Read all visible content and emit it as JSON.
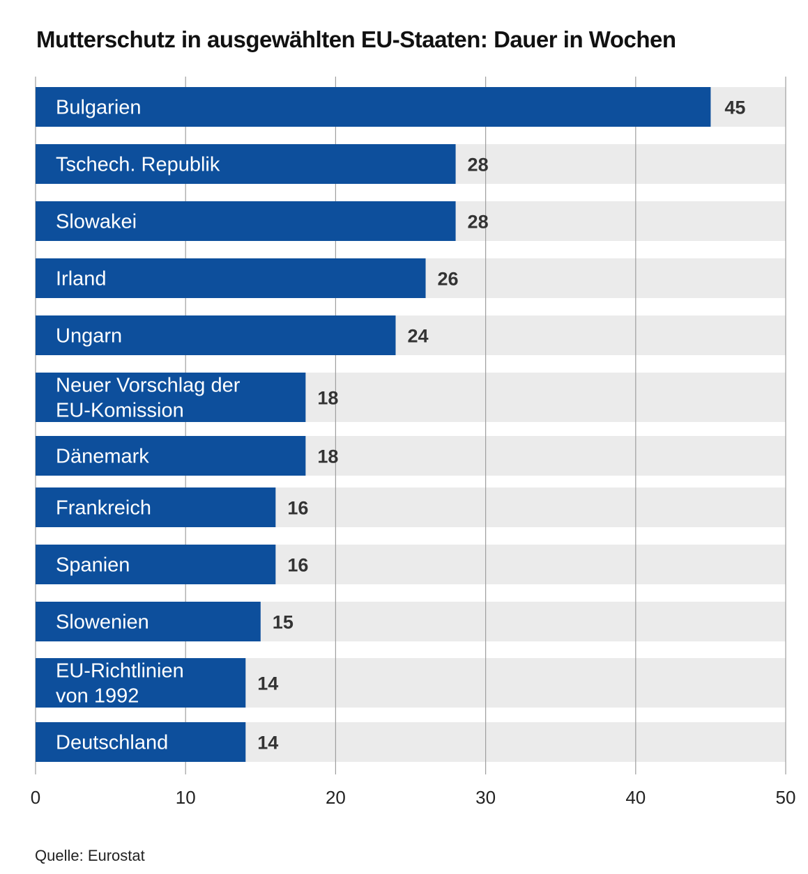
{
  "chart_data": {
    "type": "bar",
    "orientation": "horizontal",
    "title": "Mutterschutz in ausgewählten EU-Staaten: Dauer in Wochen",
    "categories": [
      [
        "Bulgarien"
      ],
      [
        "Tschech. Republik"
      ],
      [
        "Slowakei"
      ],
      [
        "Irland"
      ],
      [
        "Ungarn"
      ],
      [
        "Neuer Vorschlag der",
        "EU-Komission"
      ],
      [
        "Dänemark"
      ],
      [
        "Frankreich"
      ],
      [
        "Spanien"
      ],
      [
        "Slowenien"
      ],
      [
        "EU-Richtlinien",
        "von 1992"
      ],
      [
        "Deutschland"
      ]
    ],
    "values": [
      45,
      28,
      28,
      26,
      24,
      18,
      18,
      16,
      16,
      15,
      14,
      14
    ],
    "xlim": [
      0,
      50
    ],
    "xticks": [
      0,
      10,
      20,
      30,
      40,
      50
    ],
    "xlabel": "",
    "ylabel": "",
    "grid": true,
    "bar_color": "#0d4f9c",
    "track_color": "#ebebeb",
    "source": "Quelle: Eurostat"
  }
}
